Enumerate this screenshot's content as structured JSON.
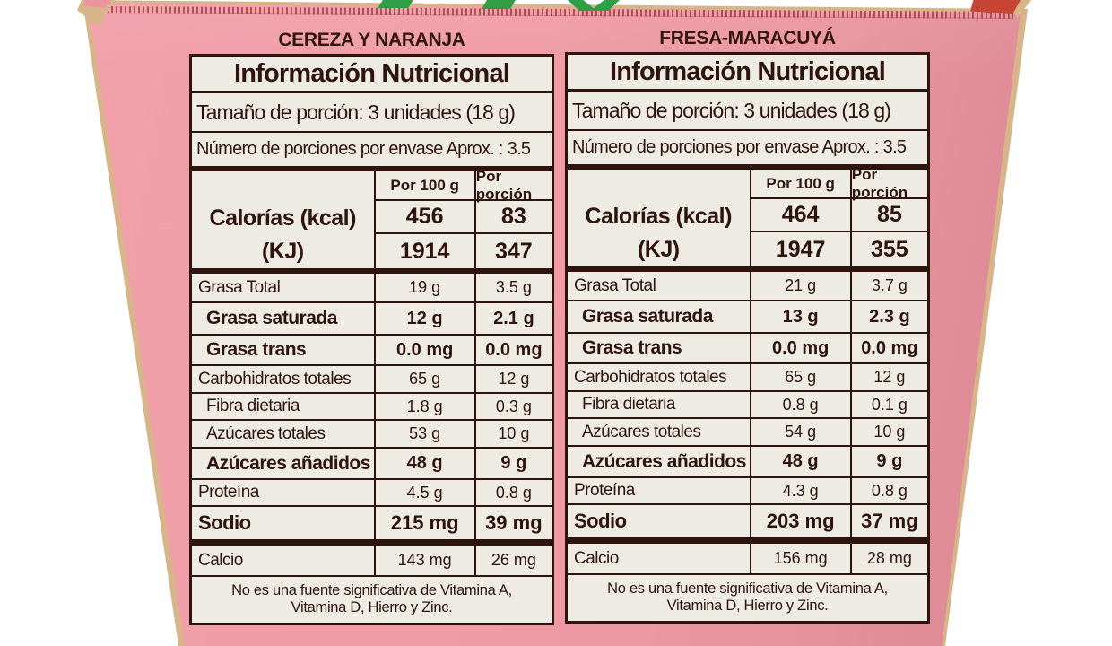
{
  "package": {
    "background_color": "#ffffff",
    "box_pink": "#f09ba5",
    "label_background": "#edebe4",
    "ink_color": "#2f140d",
    "cardboard_edge_color": "#d8b48b",
    "flap_red_color": "#c64534",
    "logo_green_color": "#2f9e45"
  },
  "labels": [
    {
      "flavor": "CEREZA Y NARANJA",
      "title": "Información Nutricional",
      "serving_size": "Tamaño de porción: 3 unidades (18 g)",
      "servings_per_container": "Número de porciones por envase Aprox. : 3.5",
      "col_headers": [
        "Por 100 g",
        "Por porción"
      ],
      "calories": {
        "label_kcal": "Calorías (kcal)",
        "label_kj": "(KJ)",
        "kcal_100": "456",
        "kcal_portion": "83",
        "kj_100": "1914",
        "kj_portion": "347"
      },
      "rows": [
        {
          "name": "Grasa Total",
          "per100": "19 g",
          "portion": "3.5 g"
        },
        {
          "name": "Grasa saturada",
          "per100": "12 g",
          "portion": "2.1 g"
        },
        {
          "name": "Grasa trans",
          "per100": "0.0 mg",
          "portion": "0.0 mg"
        },
        {
          "name": "Carbohidratos totales",
          "per100": "65 g",
          "portion": "12 g"
        },
        {
          "name": "Fibra dietaria",
          "per100": "1.8 g",
          "portion": "0.3 g"
        },
        {
          "name": "Azúcares totales",
          "per100": "53 g",
          "portion": "10 g"
        },
        {
          "name": "Azúcares añadidos",
          "per100": "48 g",
          "portion": "9 g"
        },
        {
          "name": "Proteína",
          "per100": "4.5 g",
          "portion": "0.8 g"
        },
        {
          "name": "Sodio",
          "per100": "215 mg",
          "portion": "39 mg"
        },
        {
          "name": "Calcio",
          "per100": "143 mg",
          "portion": "26 mg"
        }
      ],
      "footnote_line1": "No es una fuente significativa de Vitamina A,",
      "footnote_line2": "Vitamina D, Hierro y Zinc."
    },
    {
      "flavor": "FRESA-MARACUYÁ",
      "title": "Información Nutricional",
      "serving_size": "Tamaño de porción: 3 unidades (18 g)",
      "servings_per_container": "Número de porciones por envase Aprox. : 3.5",
      "col_headers": [
        "Por 100 g",
        "Por porción"
      ],
      "calories": {
        "label_kcal": "Calorías (kcal)",
        "label_kj": "(KJ)",
        "kcal_100": "464",
        "kcal_portion": "85",
        "kj_100": "1947",
        "kj_portion": "355"
      },
      "rows": [
        {
          "name": "Grasa Total",
          "per100": "21 g",
          "portion": "3.7 g"
        },
        {
          "name": "Grasa saturada",
          "per100": "13 g",
          "portion": "2.3 g"
        },
        {
          "name": "Grasa trans",
          "per100": "0.0 mg",
          "portion": "0.0 mg"
        },
        {
          "name": "Carbohidratos totales",
          "per100": "65 g",
          "portion": "12 g"
        },
        {
          "name": "Fibra dietaria",
          "per100": "0.8 g",
          "portion": "0.1 g"
        },
        {
          "name": "Azúcares totales",
          "per100": "54 g",
          "portion": "10 g"
        },
        {
          "name": "Azúcares añadidos",
          "per100": "48 g",
          "portion": "9 g"
        },
        {
          "name": "Proteína",
          "per100": "4.3 g",
          "portion": "0.8 g"
        },
        {
          "name": "Sodio",
          "per100": "203 mg",
          "portion": "37 mg"
        },
        {
          "name": "Calcio",
          "per100": "156 mg",
          "portion": "28 mg"
        }
      ],
      "footnote_line1": "No es una fuente significativa de Vitamina A,",
      "footnote_line2": "Vitamina D, Hierro y Zinc."
    }
  ]
}
